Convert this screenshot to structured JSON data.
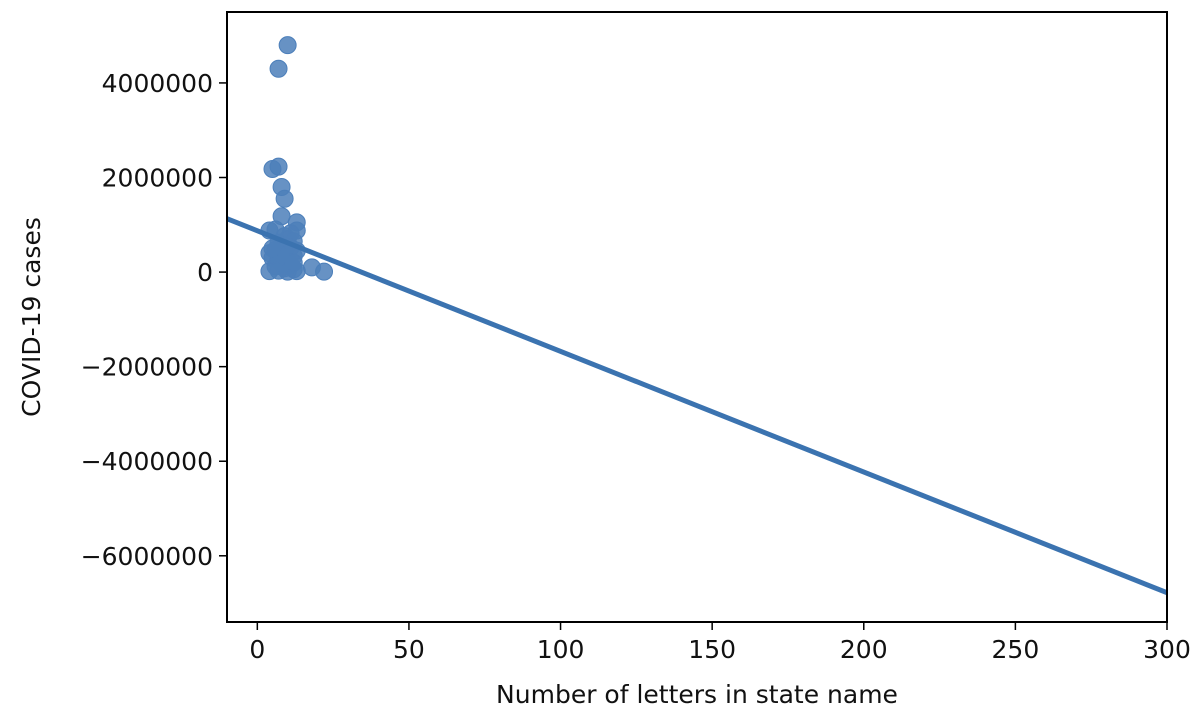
{
  "chart_data": {
    "type": "scatter",
    "title": "",
    "xlabel": "Number of letters in state name",
    "ylabel": "COVID-19 cases",
    "xlim": [
      -10,
      300
    ],
    "ylim": [
      -7400000,
      5500000
    ],
    "xticks": [
      0,
      50,
      100,
      150,
      200,
      250,
      300
    ],
    "xtick_labels": [
      "0",
      "50",
      "100",
      "150",
      "200",
      "250",
      "300"
    ],
    "yticks": [
      4000000,
      2000000,
      0,
      -2000000,
      -4000000,
      -6000000
    ],
    "ytick_labels": [
      "4000000",
      "2000000",
      "0",
      "−2000000",
      "−4000000",
      "−6000000"
    ],
    "grid": false,
    "legend": "none",
    "point_color": "#4c7fba",
    "line_color": "#3b73b0",
    "points": [
      {
        "x": 10,
        "y": 4800000
      },
      {
        "x": 7,
        "y": 4300000
      },
      {
        "x": 5,
        "y": 2180000
      },
      {
        "x": 7,
        "y": 2230000
      },
      {
        "x": 8,
        "y": 1800000
      },
      {
        "x": 9,
        "y": 1550000
      },
      {
        "x": 8,
        "y": 1180000
      },
      {
        "x": 13,
        "y": 1050000
      },
      {
        "x": 4,
        "y": 880000
      },
      {
        "x": 13,
        "y": 880000
      },
      {
        "x": 6,
        "y": 900000
      },
      {
        "x": 11,
        "y": 820000
      },
      {
        "x": 9,
        "y": 760000
      },
      {
        "x": 10,
        "y": 700000
      },
      {
        "x": 12,
        "y": 650000
      },
      {
        "x": 7,
        "y": 620000
      },
      {
        "x": 8,
        "y": 560000
      },
      {
        "x": 11,
        "y": 520000
      },
      {
        "x": 6,
        "y": 470000
      },
      {
        "x": 13,
        "y": 450000
      },
      {
        "x": 4,
        "y": 400000
      },
      {
        "x": 9,
        "y": 380000
      },
      {
        "x": 12,
        "y": 340000
      },
      {
        "x": 5,
        "y": 300000
      },
      {
        "x": 7,
        "y": 260000
      },
      {
        "x": 10,
        "y": 230000
      },
      {
        "x": 8,
        "y": 180000
      },
      {
        "x": 11,
        "y": 150000
      },
      {
        "x": 6,
        "y": 120000
      },
      {
        "x": 18,
        "y": 100000
      },
      {
        "x": 9,
        "y": 80000
      },
      {
        "x": 12,
        "y": 60000
      },
      {
        "x": 4,
        "y": 20000
      },
      {
        "x": 7,
        "y": 30000
      },
      {
        "x": 10,
        "y": 10000
      },
      {
        "x": 13,
        "y": 20000
      },
      {
        "x": 22,
        "y": 10000
      },
      {
        "x": 8,
        "y": 350000
      },
      {
        "x": 12,
        "y": 200000
      },
      {
        "x": 5,
        "y": 500000
      }
    ],
    "regression": {
      "x": [
        -10,
        300
      ],
      "y": [
        1130000,
        -6780000
      ]
    }
  }
}
